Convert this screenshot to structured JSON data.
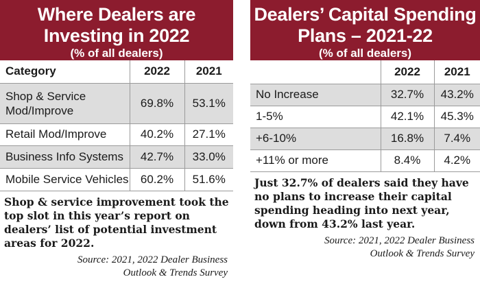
{
  "chart_data": [
    {
      "type": "table",
      "title_line1": "Where Dealers are",
      "title_line2": "Investing in 2022",
      "subtitle": "(% of all dealers)",
      "columns": [
        "Category",
        "2022",
        "2021"
      ],
      "rows": [
        {
          "label_line1": "Shop & Service",
          "label_line2": "Mod/Improve",
          "v2022": "69.8%",
          "v2021": "53.1%"
        },
        {
          "label_line1": "Retail Mod/Improve",
          "label_line2": "",
          "v2022": "40.2%",
          "v2021": "27.1%"
        },
        {
          "label_line1": "Business Info Systems",
          "label_line2": "",
          "v2022": "42.7%",
          "v2021": "33.0%"
        },
        {
          "label_line1": "Mobile Service Vehicles",
          "label_line2": "",
          "v2022": "60.2%",
          "v2021": "51.6%"
        }
      ],
      "caption": "Shop & service improvement took the top slot in this year’s report on dealers’ list of potential investment areas for 2022.",
      "source_line1": "Source: 2021, 2022 Dealer Business",
      "source_line2": "Outlook & Trends Survey"
    },
    {
      "type": "table",
      "title_line1": "Dealers’ Capital Spending",
      "title_line2": "Plans – 2021-22",
      "subtitle": "(% of all dealers)",
      "columns": [
        "",
        "2022",
        "2021"
      ],
      "rows": [
        {
          "label_line1": "No Increase",
          "label_line2": "",
          "v2022": "32.7%",
          "v2021": "43.2%"
        },
        {
          "label_line1": "1-5%",
          "label_line2": "",
          "v2022": "42.1%",
          "v2021": "45.3%"
        },
        {
          "label_line1": "+6-10%",
          "label_line2": "",
          "v2022": "16.8%",
          "v2021": "7.4%"
        },
        {
          "label_line1": "+11% or more",
          "label_line2": "",
          "v2022": "8.4%",
          "v2021": "4.2%"
        }
      ],
      "caption": "Just 32.7% of dealers said they have no plans to increase their capital spending heading into next year, down from 43.2% last year.",
      "source_line1": "Source: 2021, 2022 Dealer Business",
      "source_line2": "Outlook & Trends Survey"
    }
  ],
  "colors": {
    "header_bg": "#8c1c2e",
    "row_shade": "#dddddd",
    "grid": "#9a9a9a"
  }
}
